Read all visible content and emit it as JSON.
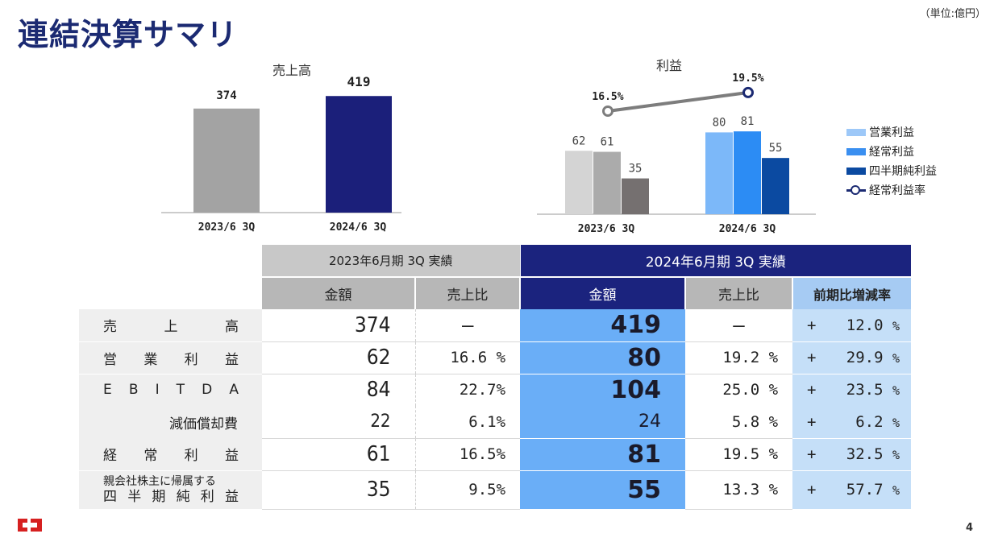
{
  "page": {
    "title": "連結決算サマリ",
    "unit": "（単位:億円）",
    "page_number": "4"
  },
  "chart_data": [
    {
      "type": "bar",
      "title": "売上高",
      "categories": [
        "2023/6  3Q",
        "2024/6  3Q"
      ],
      "values": [
        374,
        419
      ],
      "data_labels": [
        "374",
        "419"
      ],
      "colors": [
        "#a3a3a3",
        "#1b1f7a"
      ]
    },
    {
      "type": "bar",
      "title": "利益",
      "categories": [
        "2023/6  3Q",
        "2024/6  3Q"
      ],
      "series": [
        {
          "name": "営業利益",
          "values": [
            62,
            80
          ],
          "colors": [
            "#d4d4d4",
            "#7cb8f9"
          ]
        },
        {
          "name": "経常利益",
          "values": [
            61,
            81
          ],
          "colors": [
            "#ababab",
            "#2c8cf4"
          ]
        },
        {
          "name": "四半期純利益",
          "values": [
            35,
            55
          ],
          "colors": [
            "#757070",
            "#0b4aa1"
          ]
        }
      ],
      "line_series": {
        "name": "経常利益率",
        "values": [
          16.5,
          19.5
        ],
        "labels": [
          "16.5%",
          "19.5%"
        ]
      },
      "legend": [
        "営業利益",
        "経常利益",
        "四半期純利益",
        "経常利益率"
      ],
      "legend_colors": [
        "#9dc8f8",
        "#3a8ff0",
        "#0b4aa1",
        "#1b2a72"
      ]
    }
  ],
  "table": {
    "header_prev": "2023年6月期 3Q 実績",
    "header_cur": "2024年6月期 3Q 実績",
    "col_amount": "金額",
    "col_ratio": "売上比",
    "col_growth": "前期比増減率",
    "rows": [
      {
        "label": [
          "売",
          "上",
          "高"
        ],
        "prev_amount": "374",
        "prev_ratio": "―",
        "cur_amount": "419",
        "cur_ratio": "―",
        "growth_sign": "+",
        "growth_value": "12.0",
        "unit": "%"
      },
      {
        "label": [
          "営",
          "業",
          "利",
          "益"
        ],
        "prev_amount": "62",
        "prev_ratio": "16.6 %",
        "cur_amount": "80",
        "cur_ratio": "19.2 %",
        "growth_sign": "+",
        "growth_value": "29.9",
        "unit": "%"
      },
      {
        "label": [
          "E",
          "B",
          "I",
          "T",
          "D",
          "A"
        ],
        "prev_amount": "84",
        "prev_ratio": "22.7%",
        "cur_amount": "104",
        "cur_ratio": "25.0 %",
        "growth_sign": "+",
        "growth_value": "23.5",
        "unit": "%"
      },
      {
        "label_text": "減価償却費",
        "prev_amount": "22",
        "prev_ratio": "6.1%",
        "cur_amount": "24",
        "cur_ratio": "5.8 %",
        "growth_sign": "+",
        "growth_value": "6.2",
        "unit": "%"
      },
      {
        "label": [
          "経",
          "常",
          "利",
          "益"
        ],
        "prev_amount": "61",
        "prev_ratio": "16.5%",
        "cur_amount": "81",
        "cur_ratio": "19.5 %",
        "growth_sign": "+",
        "growth_value": "32.5",
        "unit": "%"
      },
      {
        "label_line1": "親会社株主に帰属する",
        "label": [
          "四",
          "半",
          "期",
          "純",
          "利",
          "益"
        ],
        "prev_amount": "35",
        "prev_ratio": "9.5%",
        "cur_amount": "55",
        "cur_ratio": "13.3 %",
        "growth_sign": "+",
        "growth_value": "57.7",
        "unit": "%"
      }
    ]
  },
  "logo": {
    "name": "company-logo",
    "color": "#d62020"
  }
}
